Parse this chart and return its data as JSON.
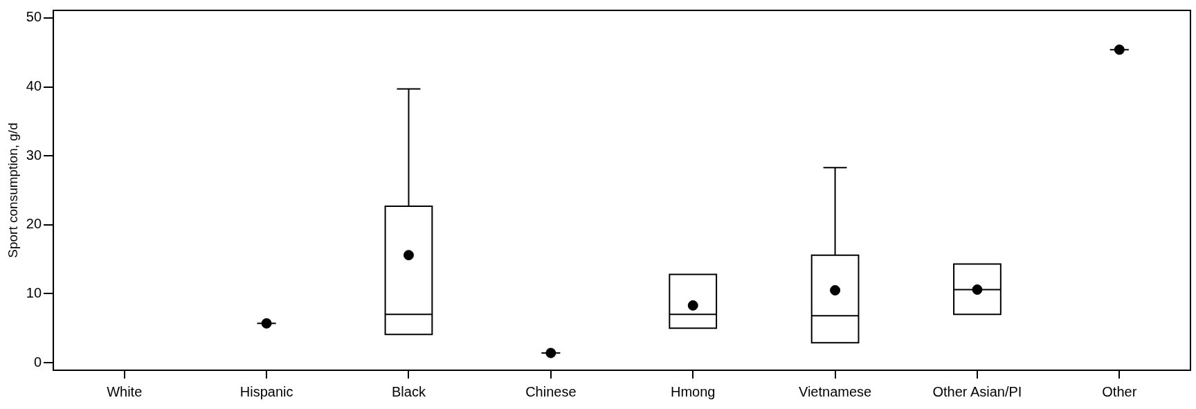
{
  "chart_data": {
    "type": "box",
    "ylabel": "Sport consumption, g/d",
    "categories": [
      "White",
      "Hispanic",
      "Black",
      "Chinese",
      "Hmong",
      "Vietnamese",
      "Other Asian/PI",
      "Other"
    ],
    "boxes": [
      null,
      {
        "low": 5.7,
        "q1": 5.7,
        "median": 5.7,
        "q3": 5.7,
        "high": 5.7,
        "mean": 5.7
      },
      {
        "low": 4.1,
        "q1": 4.1,
        "median": 7.0,
        "q3": 22.7,
        "high": 39.7,
        "mean": 15.6
      },
      {
        "low": 1.4,
        "q1": 1.4,
        "median": 1.4,
        "q3": 1.4,
        "high": 1.4,
        "mean": 1.4
      },
      {
        "low": 5.0,
        "q1": 5.0,
        "median": 7.0,
        "q3": 12.8,
        "high": 12.8,
        "mean": 8.3
      },
      {
        "low": 2.9,
        "q1": 2.9,
        "median": 6.8,
        "q3": 15.6,
        "high": 28.3,
        "mean": 10.5
      },
      {
        "low": 7.0,
        "q1": 7.0,
        "median": 10.6,
        "q3": 14.3,
        "high": 14.3,
        "mean": 10.6
      },
      {
        "low": 45.4,
        "q1": 45.4,
        "median": 45.4,
        "q3": 45.4,
        "high": 45.4,
        "mean": 45.4
      }
    ],
    "color": "#000000",
    "ylim": [
      -1.1,
      51.1
    ],
    "yticks": [
      0,
      10,
      20,
      30,
      40,
      50
    ],
    "grid": false,
    "legend": false
  }
}
